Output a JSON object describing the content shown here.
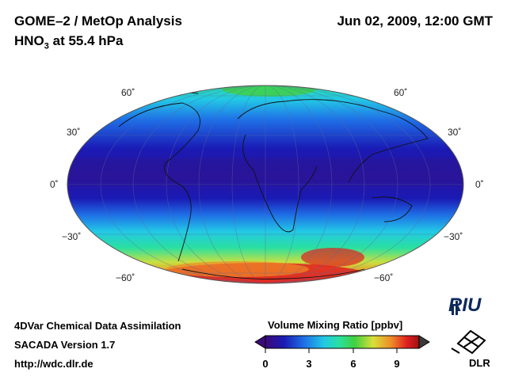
{
  "header": {
    "title": "GOME–2 / MetOp Analysis",
    "species_prefix": "HNO",
    "species_sub": "3",
    "species_suffix": " at 55.4 hPa",
    "datetime": "Jun 02, 2009, 12:00 GMT"
  },
  "map": {
    "projection": "Mollweide global",
    "lat_labels_left": [
      "60˚",
      "30˚",
      "0˚",
      "−30˚",
      "−60˚"
    ],
    "lat_labels_right": [
      "60˚",
      "30˚",
      "0˚",
      "−30˚",
      "−60˚"
    ]
  },
  "colorbar": {
    "title": "Volume Mixing Ratio [ppbv]",
    "ticks": [
      "0",
      "3",
      "6",
      "9"
    ],
    "min": 0,
    "max": 10.5,
    "colors": [
      "#3c0a78",
      "#1a1ab4",
      "#1f6ee6",
      "#22c8e6",
      "#2ae0a0",
      "#40d040",
      "#d8e03a",
      "#ee8a28",
      "#e02020",
      "#a01010"
    ]
  },
  "footer": {
    "line1": "4DVar Chemical Data Assimilation",
    "line2": "SACADA Version 1.7",
    "line3": "http://wdc.dlr.de"
  },
  "logos": {
    "riu": "RIU",
    "dlr": "DLR"
  }
}
